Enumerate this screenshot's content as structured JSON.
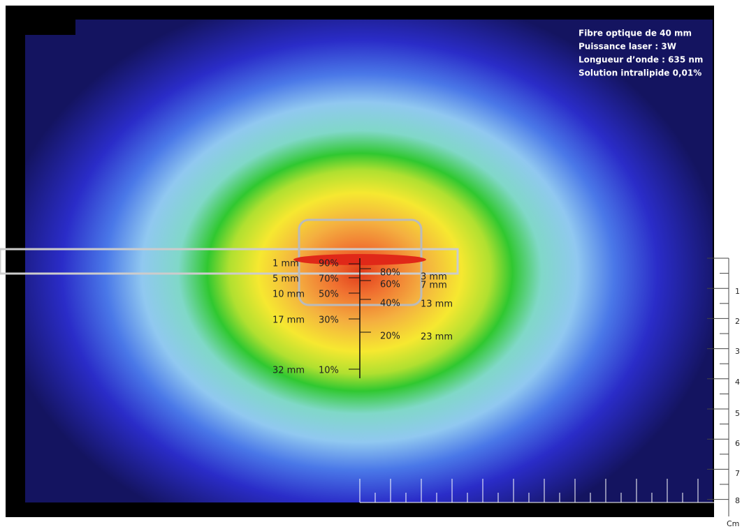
{
  "info": [
    "Fibre optique de 40  mm",
    "Puissance laser : 3W",
    "Longueur d’onde : 635  nm",
    "Solution intralipide 0,01%"
  ],
  "left_labels": [
    {
      "depth": "1 mm",
      "percent": "90%"
    },
    {
      "depth": "5 mm",
      "percent": "70%"
    },
    {
      "depth": "10 mm",
      "percent": "50%"
    },
    {
      "depth": "17 mm",
      "percent": "30%"
    },
    {
      "depth": "32 mm",
      "percent": "10%"
    }
  ],
  "right_labels": [
    {
      "percent": "80%",
      "depth": "3 mm"
    },
    {
      "percent": "60%",
      "depth": "7 mm"
    },
    {
      "percent": "40%",
      "depth": "13 mm"
    },
    {
      "percent": "20%",
      "depth": "23 mm"
    }
  ],
  "scale": {
    "labels": [
      "1",
      "2",
      "3",
      "4",
      "5",
      "6",
      "7",
      "8"
    ],
    "unit": "Cm"
  }
}
